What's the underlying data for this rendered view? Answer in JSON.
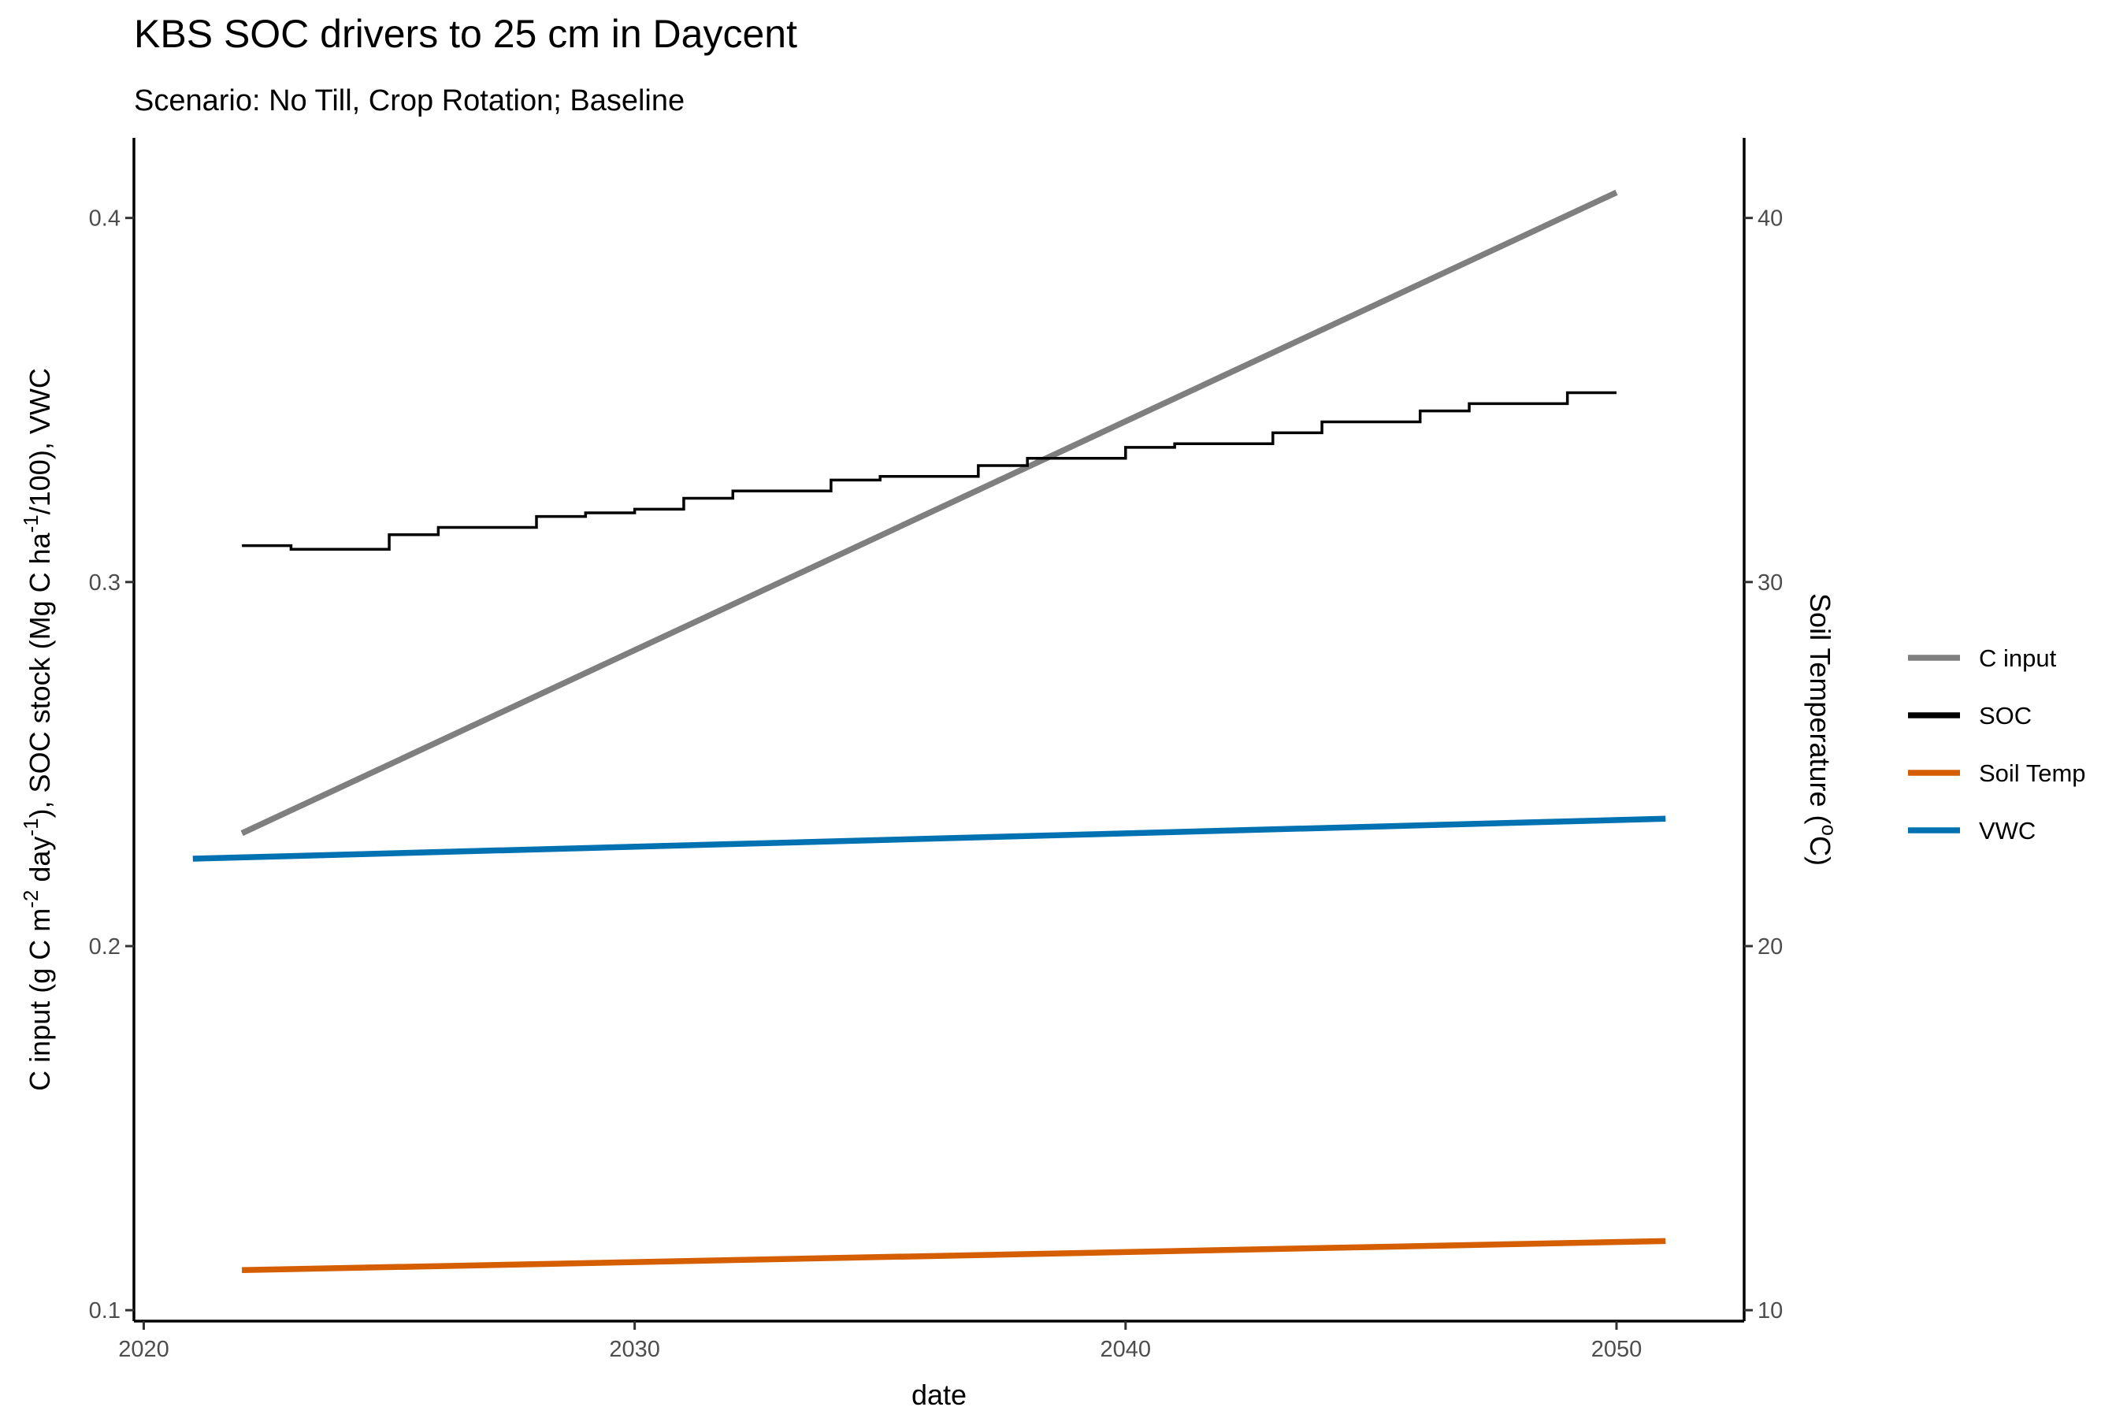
{
  "chart_data": {
    "type": "line",
    "title": "KBS SOC drivers to 25 cm in Daycent",
    "subtitle": "Scenario: No Till, Crop Rotation; Baseline",
    "xlabel": "date",
    "ylabel": {
      "parts": [
        "C input (g C m",
        "-2",
        " day",
        "-1",
        "), SOC stock (Mg C ha",
        "-1",
        "/100), VWC"
      ]
    },
    "y2label": {
      "parts": [
        "Soil Temperature (",
        "o",
        "C)"
      ]
    },
    "xlim": [
      2019.8,
      2052.6
    ],
    "ylim": [
      0.097,
      0.422
    ],
    "y2lim": [
      9.7,
      42.2
    ],
    "x_ticks": [
      2020,
      2030,
      2040,
      2050
    ],
    "y_ticks": [
      0.1,
      0.2,
      0.3,
      0.4
    ],
    "y2_ticks": [
      10,
      20,
      30,
      40
    ],
    "grid": false,
    "legend_position": "right",
    "series": [
      {
        "name": "C input",
        "color": "#7f7f7f",
        "axis": "left",
        "step": false,
        "x": [
          2022,
          2050
        ],
        "y": [
          0.231,
          0.407
        ]
      },
      {
        "name": "SOC",
        "color": "#000000",
        "axis": "left",
        "step": true,
        "x": [
          2022,
          2023,
          2024,
          2025,
          2026,
          2027,
          2028,
          2029,
          2030,
          2031,
          2032,
          2033,
          2034,
          2035,
          2036,
          2037,
          2038,
          2039,
          2040,
          2041,
          2042,
          2043,
          2044,
          2045,
          2046,
          2047,
          2048,
          2049,
          2050
        ],
        "y": [
          0.31,
          0.309,
          0.309,
          0.313,
          0.315,
          0.315,
          0.318,
          0.319,
          0.32,
          0.323,
          0.325,
          0.325,
          0.328,
          0.329,
          0.329,
          0.332,
          0.334,
          0.334,
          0.337,
          0.338,
          0.338,
          0.341,
          0.344,
          0.344,
          0.347,
          0.349,
          0.349,
          0.352,
          0.352
        ]
      },
      {
        "name": "Soil Temp",
        "color": "#d55e00",
        "axis": "right",
        "step": false,
        "x": [
          2022,
          2051
        ],
        "y": [
          11.1,
          11.9
        ]
      },
      {
        "name": "VWC",
        "color": "#0072b2",
        "axis": "left",
        "step": false,
        "x": [
          2021,
          2051
        ],
        "y": [
          0.224,
          0.235
        ]
      }
    ]
  }
}
